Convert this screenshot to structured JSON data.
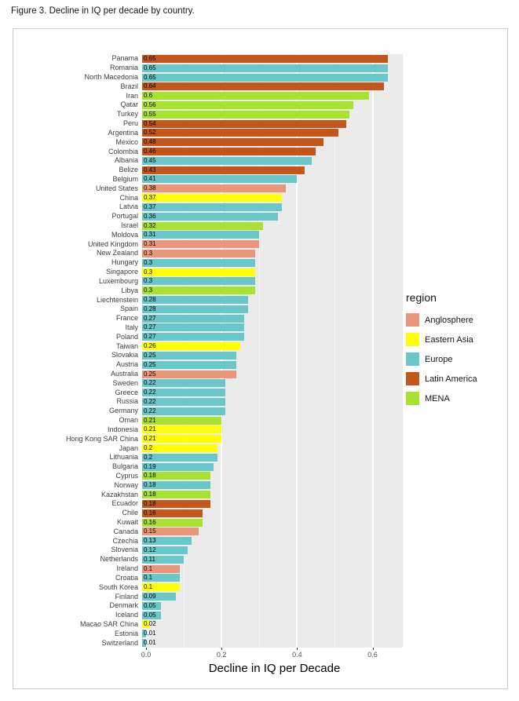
{
  "figure": {
    "title": "Figure 3. Decline in IQ per decade by country."
  },
  "chart_data": {
    "type": "bar",
    "orientation": "horizontal",
    "xlabel": "Decline in IQ per Decade",
    "ylabel": "",
    "xlim": [
      0,
      0.68
    ],
    "x_ticks": [
      "0.0",
      "0.2",
      "0.4",
      "0.6"
    ],
    "x_tick_values": [
      0,
      0.2,
      0.4,
      0.6
    ],
    "minor_grid_values": [
      0.1,
      0.3,
      0.5
    ],
    "grid": true,
    "legend_position": "right",
    "legend_title": "region",
    "regions": [
      {
        "name": "Anglosphere",
        "color": "#E9967A"
      },
      {
        "name": "Eastern Asia",
        "color": "#FFFF00"
      },
      {
        "name": "Europe",
        "color": "#69C6C9"
      },
      {
        "name": "Latin America",
        "color": "#C3571B"
      },
      {
        "name": "MENA",
        "color": "#A6E22E"
      }
    ],
    "countries": [
      {
        "name": "Panama",
        "value": 0.65,
        "region": "Latin America"
      },
      {
        "name": "Romania",
        "value": 0.65,
        "region": "Europe"
      },
      {
        "name": "North Macedonia",
        "value": 0.65,
        "region": "Europe"
      },
      {
        "name": "Brazil",
        "value": 0.64,
        "region": "Latin America"
      },
      {
        "name": "Iran",
        "value": 0.6,
        "region": "MENA"
      },
      {
        "name": "Qatar",
        "value": 0.56,
        "region": "MENA"
      },
      {
        "name": "Turkey",
        "value": 0.55,
        "region": "MENA"
      },
      {
        "name": "Peru",
        "value": 0.54,
        "region": "Latin America"
      },
      {
        "name": "Argentina",
        "value": 0.52,
        "region": "Latin America"
      },
      {
        "name": "Mexico",
        "value": 0.48,
        "region": "Latin America"
      },
      {
        "name": "Colombia",
        "value": 0.46,
        "region": "Latin America"
      },
      {
        "name": "Albania",
        "value": 0.45,
        "region": "Europe"
      },
      {
        "name": "Belize",
        "value": 0.43,
        "region": "Latin America"
      },
      {
        "name": "Belgium",
        "value": 0.41,
        "region": "Europe"
      },
      {
        "name": "United States",
        "value": 0.38,
        "region": "Anglosphere"
      },
      {
        "name": "China",
        "value": 0.37,
        "region": "Eastern Asia"
      },
      {
        "name": "Latvia",
        "value": 0.37,
        "region": "Europe"
      },
      {
        "name": "Portugal",
        "value": 0.36,
        "region": "Europe"
      },
      {
        "name": "Israel",
        "value": 0.32,
        "region": "MENA"
      },
      {
        "name": "Moldova",
        "value": 0.31,
        "region": "Europe"
      },
      {
        "name": "United Kingdom",
        "value": 0.31,
        "region": "Anglosphere"
      },
      {
        "name": "New Zealand",
        "value": 0.3,
        "region": "Anglosphere"
      },
      {
        "name": "Hungary",
        "value": 0.3,
        "region": "Europe"
      },
      {
        "name": "Singapore",
        "value": 0.3,
        "region": "Eastern Asia"
      },
      {
        "name": "Luxembourg",
        "value": 0.3,
        "region": "Europe"
      },
      {
        "name": "Libya",
        "value": 0.3,
        "region": "MENA"
      },
      {
        "name": "Liechtenstein",
        "value": 0.28,
        "region": "Europe"
      },
      {
        "name": "Spain",
        "value": 0.28,
        "region": "Europe"
      },
      {
        "name": "France",
        "value": 0.27,
        "region": "Europe"
      },
      {
        "name": "Italy",
        "value": 0.27,
        "region": "Europe"
      },
      {
        "name": "Poland",
        "value": 0.27,
        "region": "Europe"
      },
      {
        "name": "Taiwan",
        "value": 0.26,
        "region": "Eastern Asia"
      },
      {
        "name": "Slovakia",
        "value": 0.25,
        "region": "Europe"
      },
      {
        "name": "Austria",
        "value": 0.25,
        "region": "Europe"
      },
      {
        "name": "Australia",
        "value": 0.25,
        "region": "Anglosphere"
      },
      {
        "name": "Sweden",
        "value": 0.22,
        "region": "Europe"
      },
      {
        "name": "Greece",
        "value": 0.22,
        "region": "Europe"
      },
      {
        "name": "Russia",
        "value": 0.22,
        "region": "Europe"
      },
      {
        "name": "Germany",
        "value": 0.22,
        "region": "Europe"
      },
      {
        "name": "Oman",
        "value": 0.21,
        "region": "MENA"
      },
      {
        "name": "Indonesia",
        "value": 0.21,
        "region": "Eastern Asia"
      },
      {
        "name": "Hong Kong SAR China",
        "value": 0.21,
        "region": "Eastern Asia"
      },
      {
        "name": "Japan",
        "value": 0.2,
        "region": "Eastern Asia"
      },
      {
        "name": "Lithuania",
        "value": 0.2,
        "region": "Europe"
      },
      {
        "name": "Bulgaria",
        "value": 0.19,
        "region": "Europe"
      },
      {
        "name": "Cyprus",
        "value": 0.18,
        "region": "MENA"
      },
      {
        "name": "Norway",
        "value": 0.18,
        "region": "Europe"
      },
      {
        "name": "Kazakhstan",
        "value": 0.18,
        "region": "MENA"
      },
      {
        "name": "Ecuador",
        "value": 0.18,
        "region": "Latin America"
      },
      {
        "name": "Chile",
        "value": 0.16,
        "region": "Latin America"
      },
      {
        "name": "Kuwait",
        "value": 0.16,
        "region": "MENA"
      },
      {
        "name": "Canada",
        "value": 0.15,
        "region": "Anglosphere"
      },
      {
        "name": "Czechia",
        "value": 0.13,
        "region": "Europe"
      },
      {
        "name": "Slovenia",
        "value": 0.12,
        "region": "Europe"
      },
      {
        "name": "Netherlands",
        "value": 0.11,
        "region": "Europe"
      },
      {
        "name": "Ireland",
        "value": 0.1,
        "region": "Anglosphere"
      },
      {
        "name": "Croatia",
        "value": 0.1,
        "region": "Europe"
      },
      {
        "name": "South Korea",
        "value": 0.1,
        "region": "Eastern Asia"
      },
      {
        "name": "Finland",
        "value": 0.09,
        "region": "Europe"
      },
      {
        "name": "Denmark",
        "value": 0.05,
        "region": "Europe"
      },
      {
        "name": "Iceland",
        "value": 0.05,
        "region": "Europe"
      },
      {
        "name": "Macao SAR China",
        "value": 0.02,
        "region": "Eastern Asia"
      },
      {
        "name": "Estonia",
        "value": 0.01,
        "region": "Europe"
      },
      {
        "name": "Switzerland",
        "value": 0.01,
        "region": "Europe"
      }
    ]
  }
}
